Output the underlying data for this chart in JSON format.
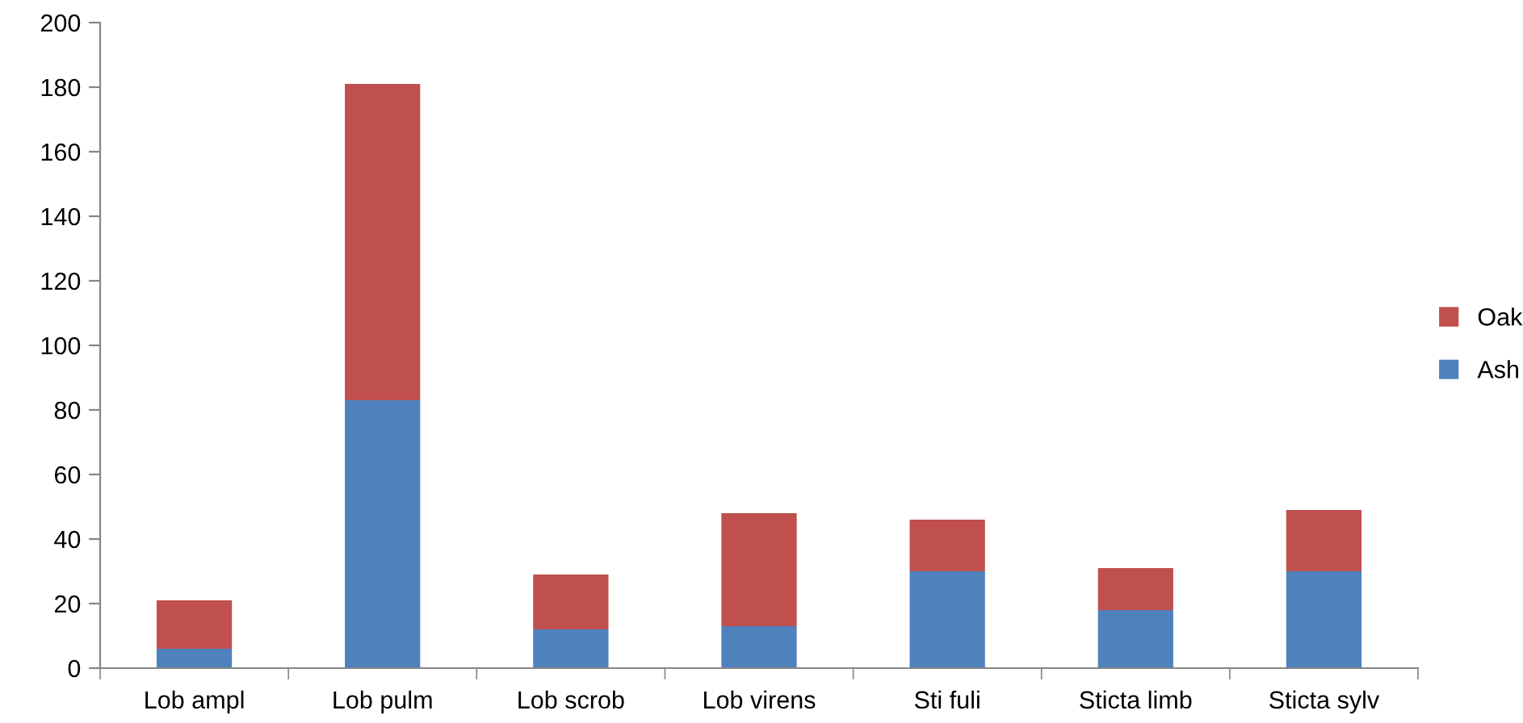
{
  "chart_data": {
    "type": "bar",
    "stacked": true,
    "categories": [
      "Lob ampl",
      "Lob pulm",
      "Lob scrob",
      "Lob virens",
      "Sti fuli",
      "Sticta limb",
      "Sticta sylv"
    ],
    "series": [
      {
        "name": "Ash",
        "color": "#4f81bd",
        "values": [
          6,
          83,
          12,
          13,
          30,
          18,
          30
        ]
      },
      {
        "name": "Oak",
        "color": "#c0504d",
        "values": [
          15,
          98,
          17,
          35,
          16,
          13,
          19
        ]
      }
    ],
    "ylim": [
      0,
      200
    ],
    "yticks": [
      0,
      20,
      40,
      60,
      80,
      100,
      120,
      140,
      160,
      180,
      200
    ],
    "grid": false,
    "legend": "right"
  }
}
